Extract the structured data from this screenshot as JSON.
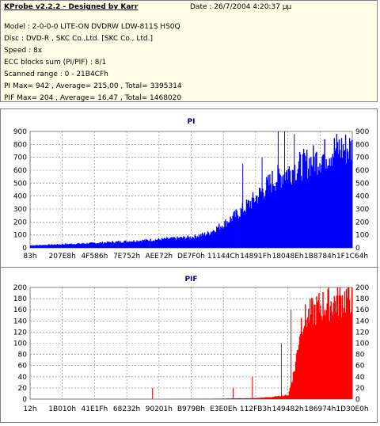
{
  "info": {
    "title": "KProbe v2.2.2 - Designed by Karr",
    "date": "Date : 26/7/2004 4:20:37 μμ",
    "model": "Model : 2-0-0-0 LITE-ON DVDRW LDW-811S   HS0Q",
    "disc": "Disc : DVD-R , SKC Co.,Ltd. [SKC Co., Ltd.]",
    "speed": "Speed : 8x",
    "ecc": "ECC blocks sum (PI/PIF) : 8/1",
    "range": "Scanned range : 0 - 21B4CFh",
    "pi_summary": "PI Max= 942 , Average= 215,00 , Total= 3395314",
    "pif_summary": "PIF Max= 204 , Average= 16,47 , Total= 1468020"
  },
  "colors": {
    "pi": "#0000ff",
    "pif": "#ff0000",
    "grid": "#808080",
    "plot_bg": "#ffffff"
  },
  "chart_data": [
    {
      "type": "area",
      "title": "PI",
      "ylim": [
        0,
        900
      ],
      "yticks": [
        0,
        100,
        200,
        300,
        400,
        500,
        600,
        700,
        800,
        900
      ],
      "xticks": [
        "83h",
        "207E8h",
        "4F586h",
        "7E752h",
        "AEE72h",
        "DE7F0h",
        "11144Ch",
        "14891Fh",
        "18048Eh",
        "1B8784h",
        "1F1C64h"
      ],
      "xlim": [
        0,
        1
      ],
      "grid": true,
      "color": "#0000ff",
      "x": [
        0,
        0.1,
        0.2,
        0.3,
        0.4,
        0.5,
        0.55,
        0.6,
        0.65,
        0.7,
        0.75,
        0.8,
        0.85,
        0.9,
        0.95,
        1.0
      ],
      "values": [
        20,
        30,
        40,
        55,
        70,
        90,
        120,
        200,
        300,
        420,
        560,
        640,
        700,
        760,
        830,
        830
      ],
      "peaks": [
        {
          "x": 0.77,
          "value": 942
        },
        {
          "x": 0.79,
          "value": 900
        },
        {
          "x": 0.66,
          "value": 650
        },
        {
          "x": 0.72,
          "value": 700
        },
        {
          "x": 0.82,
          "value": 880
        }
      ]
    },
    {
      "type": "area",
      "title": "PIF",
      "ylim": [
        0,
        200
      ],
      "yticks": [
        0,
        20,
        40,
        60,
        80,
        100,
        120,
        140,
        160,
        180,
        200
      ],
      "xticks": [
        "12h",
        "1B010h",
        "41E1Fh",
        "68232h",
        "90201h",
        "B979Bh",
        "E3E0Eh",
        "112FB3h",
        "149482h",
        "186974h",
        "1D30E0h"
      ],
      "xlim": [
        0,
        1
      ],
      "grid": true,
      "color": "#ff0000",
      "x": [
        0,
        0.4,
        0.6,
        0.7,
        0.75,
        0.8,
        0.82,
        0.84,
        0.9,
        0.95,
        1.0
      ],
      "values": [
        0,
        0,
        1,
        2,
        4,
        8,
        60,
        150,
        180,
        190,
        200
      ],
      "peaks": [
        {
          "x": 0.38,
          "value": 20
        },
        {
          "x": 0.63,
          "value": 20
        },
        {
          "x": 0.69,
          "value": 40
        },
        {
          "x": 0.78,
          "value": 100
        },
        {
          "x": 0.81,
          "value": 160
        }
      ]
    }
  ]
}
